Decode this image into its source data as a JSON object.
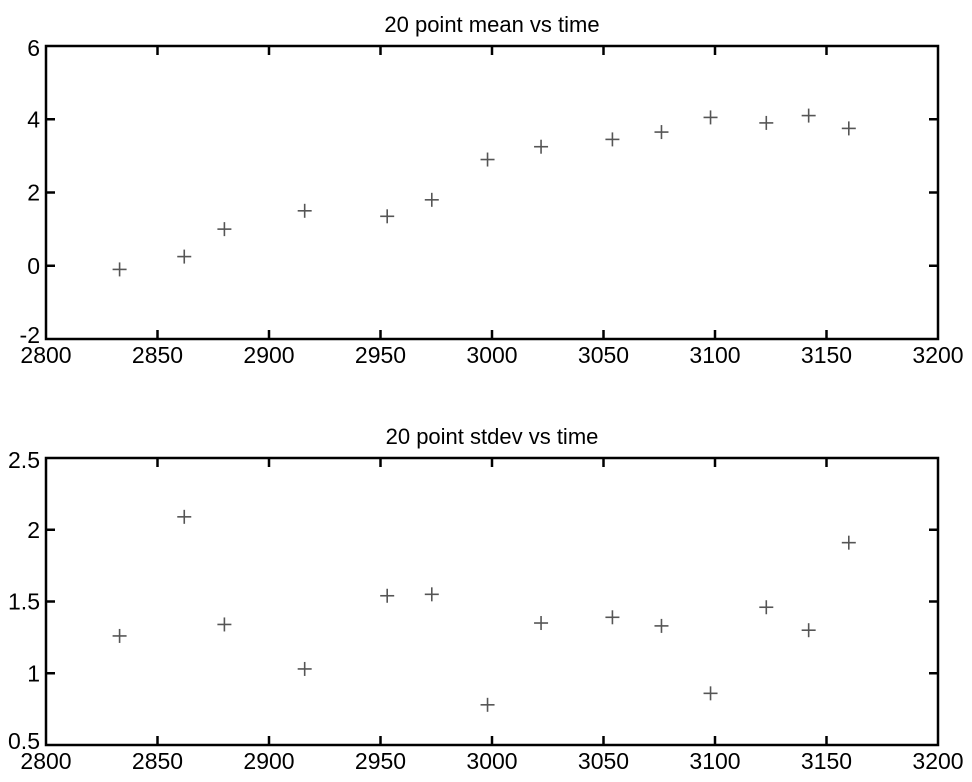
{
  "chart_data": [
    {
      "type": "scatter",
      "title": "20 point mean vs time",
      "xlabel": "",
      "ylabel": "",
      "xlim": [
        2800,
        3200
      ],
      "ylim": [
        -2,
        6
      ],
      "xticks": [
        2800,
        2850,
        2900,
        2950,
        3000,
        3050,
        3100,
        3150,
        3200
      ],
      "yticks": [
        -2,
        0,
        2,
        4,
        6
      ],
      "marker": "+",
      "grid": false,
      "x": [
        2833,
        2862,
        2880,
        2916,
        2953,
        2973,
        2998,
        3022,
        3054,
        3076,
        3098,
        3123,
        3142,
        3160
      ],
      "y": [
        -0.1,
        0.25,
        1.0,
        1.5,
        1.35,
        1.8,
        2.9,
        3.25,
        3.45,
        3.65,
        4.05,
        3.9,
        4.1,
        3.75
      ]
    },
    {
      "type": "scatter",
      "title": "20 point stdev vs time",
      "xlabel": "",
      "ylabel": "",
      "xlim": [
        2800,
        3200
      ],
      "ylim": [
        0.5,
        2.5
      ],
      "xticks": [
        2800,
        2850,
        2900,
        2950,
        3000,
        3050,
        3100,
        3150,
        3200
      ],
      "yticks": [
        0.5,
        1,
        1.5,
        2,
        2.5
      ],
      "marker": "+",
      "grid": false,
      "x": [
        2833,
        2862,
        2880,
        2916,
        2953,
        2973,
        2998,
        3022,
        3054,
        3076,
        3098,
        3123,
        3142,
        3160
      ],
      "y": [
        1.26,
        2.09,
        1.34,
        1.03,
        1.54,
        1.55,
        0.78,
        1.35,
        1.39,
        1.33,
        0.86,
        1.46,
        1.3,
        1.91
      ]
    }
  ]
}
